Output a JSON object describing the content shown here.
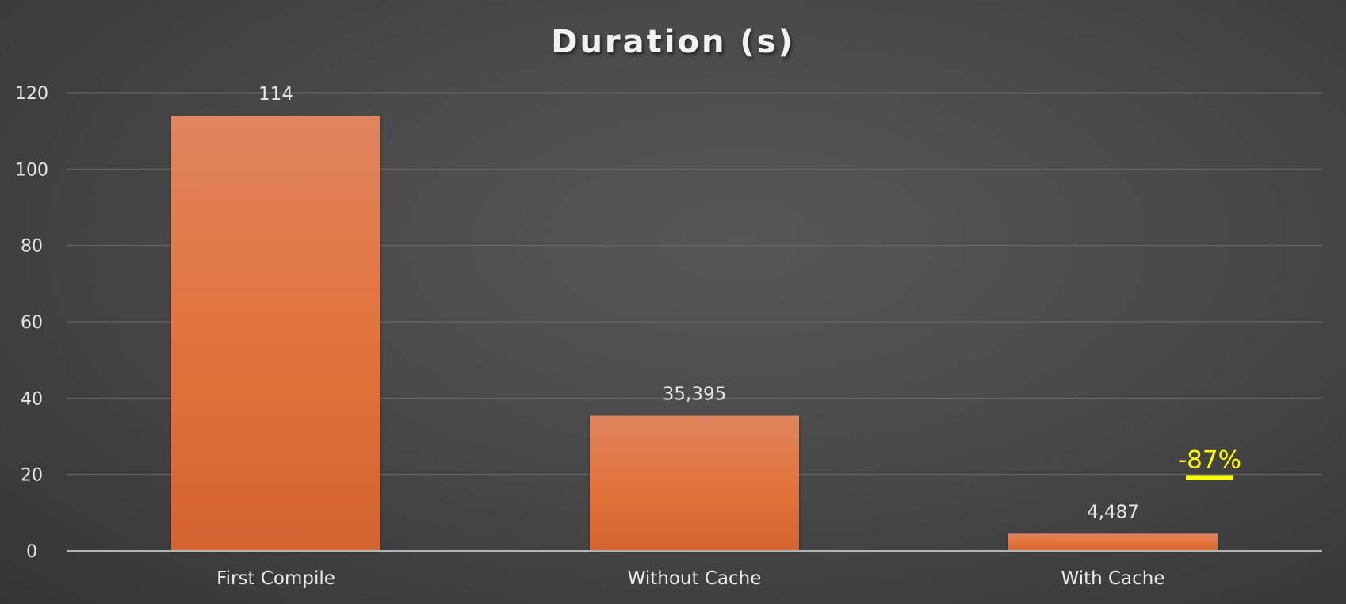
{
  "chart_data": {
    "type": "bar",
    "title": "Duration (s)",
    "categories": [
      "First Compile",
      "Without Cache",
      "With Cache"
    ],
    "values": [
      114,
      35.395,
      4.487
    ],
    "data_labels": [
      "114",
      "35,395",
      "4,487"
    ],
    "ylim": [
      0,
      120
    ],
    "yticks": [
      0,
      20,
      40,
      60,
      80,
      100,
      120
    ],
    "grid": true,
    "legend": "none",
    "annotation": {
      "text": "-87%",
      "color": "#FFFF00",
      "x": "With Cache",
      "y": 24
    },
    "colors": {
      "bar_top": "#E0855F",
      "bar_mid": "#E2733C",
      "bar_bottom": "#D4642F",
      "gridline": "#6a6a6a",
      "axis": "#b5b5b5"
    }
  }
}
